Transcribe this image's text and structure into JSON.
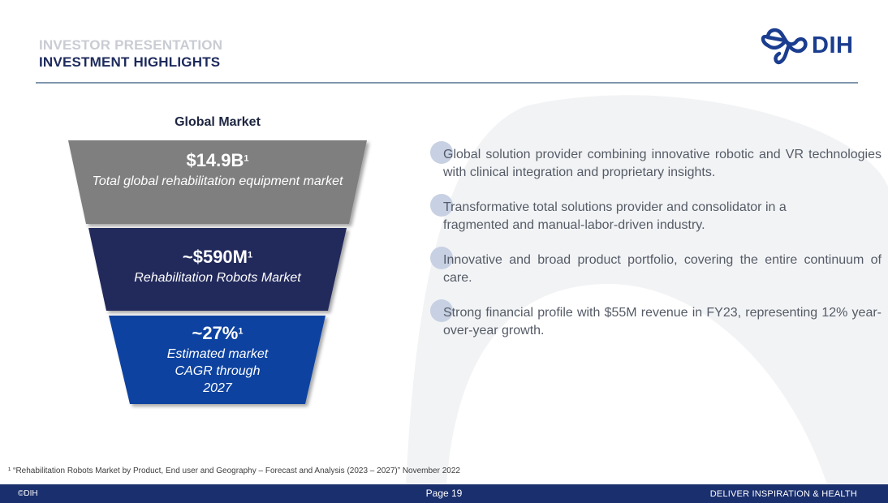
{
  "header": {
    "eyebrow": "INVESTOR PRESENTATION",
    "title": "INVESTMENT HIGHLIGHTS"
  },
  "logo": {
    "text": "DIH",
    "color": "#1b3d8f"
  },
  "funnel": {
    "title": "Global Market",
    "tiers": [
      {
        "value": "$14.9B",
        "sup": "1",
        "desc": "Total global rehabilitation equipment market",
        "color": "#7f7f7f"
      },
      {
        "value": "~$590M",
        "sup": "1",
        "desc": "Rehabilitation Robots Market",
        "color": "#222b5c"
      },
      {
        "value": "~27%",
        "sup": "1",
        "desc_lines": [
          "Estimated market",
          "CAGR through",
          "2027"
        ],
        "color": "#0f43a0"
      }
    ]
  },
  "highlights": [
    "Global solution provider combining innovative robotic and VR technologies with clinical integration and proprietary insights.",
    "Transformative total solutions provider and consolidator in a fragmented and manual-labor-driven industry.",
    "Innovative and broad product portfolio, covering the entire continuum of care.",
    "Strong financial profile with $55M revenue in FY23, representing 12% year-over-year growth."
  ],
  "footnote": "¹ “Rehabilitation Robots Market by Product, End user and Geography – Forecast and Analysis (2023 – 2027)” November 2022",
  "footer": {
    "left": "©DIH",
    "center": "Page 19",
    "right": "DELIVER INSPIRATION & HEALTH",
    "color": "#1a2f6e"
  }
}
